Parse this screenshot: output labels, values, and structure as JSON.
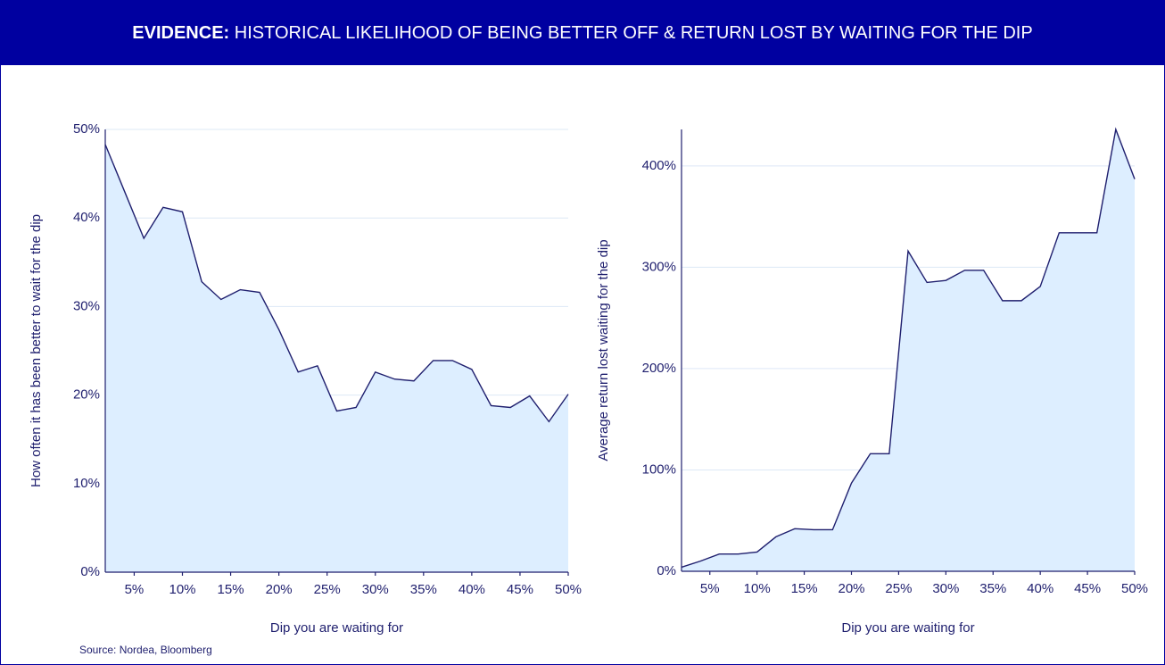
{
  "header": {
    "title_bold": "EVIDENCE:",
    "title": "HISTORICAL LIKELIHOOD OF BEING BETTER OFF & RETURN LOST BY WAITING FOR THE DIP"
  },
  "source": "Source: Nordea, Bloomberg",
  "chart_data": [
    {
      "type": "area",
      "x_label": "Dip you are waiting for",
      "y_label": "How often it has been better to wait for the dip",
      "x": [
        2,
        4,
        6,
        8,
        10,
        12,
        14,
        16,
        18,
        20,
        22,
        24,
        26,
        28,
        30,
        32,
        34,
        36,
        38,
        40,
        42,
        44,
        46,
        48,
        50
      ],
      "series": [
        {
          "name": null,
          "color": "#1f1f6e",
          "fill": "#ddeeff",
          "values": [
            48.3,
            43,
            37.7,
            41.2,
            40.7,
            32.8,
            30.8,
            31.9,
            31.6,
            27.4,
            22.6,
            23.3,
            18.2,
            18.6,
            22.6,
            21.8,
            21.6,
            23.9,
            23.9,
            22.9,
            18.8,
            18.6,
            19.9,
            17.0,
            20.1
          ]
        }
      ],
      "xlim": [
        2,
        50
      ],
      "xticks": [
        {
          "value": 5,
          "label": "5%"
        },
        {
          "value": 10,
          "label": "10%"
        },
        {
          "value": 15,
          "label": "15%"
        },
        {
          "value": 20,
          "label": "20%"
        },
        {
          "value": 25,
          "label": "25%"
        },
        {
          "value": 30,
          "label": "30%"
        },
        {
          "value": 35,
          "label": "35%"
        },
        {
          "value": 40,
          "label": "40%"
        },
        {
          "value": 45,
          "label": "45%"
        },
        {
          "value": 50,
          "label": "50%"
        }
      ],
      "ylim": [
        0,
        50
      ],
      "yticks": [
        {
          "value": 0,
          "label": "0%"
        },
        {
          "value": 10,
          "label": "10%"
        },
        {
          "value": 20,
          "label": "20%"
        },
        {
          "value": 30,
          "label": "30%"
        },
        {
          "value": 40,
          "label": "40%"
        },
        {
          "value": 50,
          "label": "50%"
        }
      ],
      "grid": true
    },
    {
      "type": "area",
      "x_label": "Dip you are waiting for",
      "y_label": "Average return lost waiting for the dip",
      "x": [
        2,
        4,
        6,
        8,
        10,
        12,
        14,
        16,
        18,
        20,
        22,
        24,
        26,
        28,
        30,
        32,
        34,
        36,
        38,
        40,
        42,
        44,
        46,
        48,
        50
      ],
      "series": [
        {
          "name": null,
          "color": "#1f1f6e",
          "fill": "#ddeeff",
          "values": [
            4,
            10,
            17,
            17,
            19,
            34,
            42,
            41,
            41,
            87,
            116,
            116,
            316,
            285,
            287,
            297,
            297,
            267,
            267,
            281,
            334,
            334,
            334,
            436,
            387
          ]
        }
      ],
      "xlim": [
        2,
        50
      ],
      "xticks": [
        {
          "value": 5,
          "label": "5%"
        },
        {
          "value": 10,
          "label": "10%"
        },
        {
          "value": 15,
          "label": "15%"
        },
        {
          "value": 20,
          "label": "20%"
        },
        {
          "value": 25,
          "label": "25%"
        },
        {
          "value": 30,
          "label": "30%"
        },
        {
          "value": 35,
          "label": "35%"
        },
        {
          "value": 40,
          "label": "40%"
        },
        {
          "value": 45,
          "label": "45%"
        },
        {
          "value": 50,
          "label": "50%"
        }
      ],
      "ylim": [
        0,
        436
      ],
      "yticks": [
        {
          "value": 0,
          "label": "0%"
        },
        {
          "value": 100,
          "label": "100%"
        },
        {
          "value": 200,
          "label": "200%"
        },
        {
          "value": 300,
          "label": "300%"
        },
        {
          "value": 400,
          "label": "400%"
        }
      ],
      "grid": true
    }
  ]
}
